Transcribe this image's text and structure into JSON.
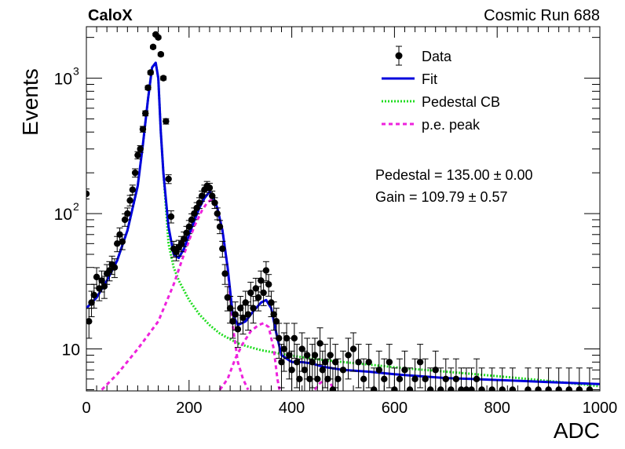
{
  "header": {
    "left": "CaloX",
    "right": "Cosmic Run 688"
  },
  "stats": {
    "pedestal": "Pedestal = 135.00 ± 0.00",
    "gain": "Gain = 109.79 ± 0.57"
  },
  "chart_data": {
    "type": "scatter",
    "xlabel": "ADC",
    "ylabel": "Events",
    "xlim": [
      0,
      1000
    ],
    "ylim": [
      4.9,
      2400
    ],
    "yscale": "log",
    "grid": false,
    "legend_position": "top-right",
    "x_ticks": [
      0,
      200,
      400,
      600,
      800,
      1000
    ],
    "y_tick_labels": [
      {
        "value": 10,
        "label": "10"
      },
      {
        "value": 100,
        "label": "10",
        "exp": "2"
      },
      {
        "value": 1000,
        "label": "10",
        "exp": "3"
      }
    ],
    "legend": [
      {
        "label": "Data",
        "style": "marker",
        "color": "#000000"
      },
      {
        "label": "Fit",
        "style": "solid",
        "color": "#0000dd"
      },
      {
        "label": "Pedestal CB",
        "style": "dotted",
        "color": "#22dd22"
      },
      {
        "label": "p.e. peak",
        "style": "dashed",
        "color": "#ee22dd"
      }
    ],
    "series": [
      {
        "name": "Data",
        "points": [
          [
            0,
            140
          ],
          [
            5,
            16
          ],
          [
            10,
            22
          ],
          [
            15,
            25
          ],
          [
            20,
            34
          ],
          [
            25,
            28
          ],
          [
            30,
            32
          ],
          [
            35,
            29
          ],
          [
            40,
            36
          ],
          [
            45,
            38
          ],
          [
            50,
            42
          ],
          [
            55,
            40
          ],
          [
            60,
            60
          ],
          [
            65,
            70
          ],
          [
            70,
            62
          ],
          [
            75,
            90
          ],
          [
            80,
            100
          ],
          [
            85,
            125
          ],
          [
            90,
            150
          ],
          [
            95,
            200
          ],
          [
            100,
            270
          ],
          [
            105,
            300
          ],
          [
            110,
            420
          ],
          [
            115,
            550
          ],
          [
            120,
            850
          ],
          [
            125,
            1100
          ],
          [
            130,
            1700
          ],
          [
            135,
            2100
          ],
          [
            140,
            2000
          ],
          [
            145,
            1500
          ],
          [
            150,
            1000
          ],
          [
            155,
            480
          ],
          [
            160,
            180
          ],
          [
            165,
            95
          ],
          [
            170,
            55
          ],
          [
            175,
            52
          ],
          [
            180,
            56
          ],
          [
            185,
            60
          ],
          [
            190,
            65
          ],
          [
            195,
            72
          ],
          [
            200,
            80
          ],
          [
            205,
            90
          ],
          [
            210,
            100
          ],
          [
            215,
            110
          ],
          [
            220,
            120
          ],
          [
            225,
            135
          ],
          [
            230,
            150
          ],
          [
            235,
            160
          ],
          [
            240,
            155
          ],
          [
            245,
            135
          ],
          [
            250,
            120
          ],
          [
            255,
            100
          ],
          [
            260,
            80
          ],
          [
            265,
            55
          ],
          [
            270,
            36
          ],
          [
            275,
            24
          ],
          [
            280,
            20
          ],
          [
            285,
            16
          ],
          [
            290,
            18
          ],
          [
            295,
            14
          ],
          [
            300,
            20
          ],
          [
            305,
            17
          ],
          [
            310,
            22
          ],
          [
            315,
            18
          ],
          [
            320,
            26
          ],
          [
            325,
            20
          ],
          [
            330,
            28
          ],
          [
            335,
            24
          ],
          [
            340,
            32
          ],
          [
            345,
            26
          ],
          [
            350,
            38
          ],
          [
            355,
            30
          ],
          [
            360,
            22
          ],
          [
            365,
            18
          ],
          [
            370,
            16
          ],
          [
            375,
            12
          ],
          [
            380,
            8
          ],
          [
            385,
            10
          ],
          [
            390,
            12
          ],
          [
            395,
            9
          ],
          [
            400,
            7
          ],
          [
            405,
            12
          ],
          [
            410,
            8
          ],
          [
            415,
            6
          ],
          [
            420,
            10
          ],
          [
            425,
            7
          ],
          [
            430,
            9
          ],
          [
            435,
            6
          ],
          [
            440,
            8
          ],
          [
            445,
            9
          ],
          [
            450,
            6
          ],
          [
            455,
            11
          ],
          [
            460,
            7
          ],
          [
            465,
            8
          ],
          [
            470,
            6
          ],
          [
            475,
            9
          ],
          [
            480,
            5
          ],
          [
            485,
            8
          ],
          [
            490,
            6
          ],
          [
            500,
            7
          ],
          [
            510,
            9
          ],
          [
            520,
            10
          ],
          [
            530,
            8
          ],
          [
            540,
            6
          ],
          [
            550,
            8
          ],
          [
            560,
            5
          ],
          [
            570,
            7
          ],
          [
            580,
            6
          ],
          [
            590,
            8
          ],
          [
            600,
            5
          ],
          [
            610,
            6
          ],
          [
            620,
            7
          ],
          [
            630,
            5
          ],
          [
            640,
            6
          ],
          [
            650,
            8
          ],
          [
            660,
            6
          ],
          [
            670,
            5
          ],
          [
            680,
            7
          ],
          [
            690,
            5
          ],
          [
            700,
            6
          ],
          [
            710,
            5
          ],
          [
            720,
            6
          ],
          [
            730,
            5
          ],
          [
            740,
            5
          ],
          [
            750,
            5
          ],
          [
            760,
            6
          ],
          [
            770,
            5
          ],
          [
            790,
            5
          ],
          [
            810,
            5
          ],
          [
            830,
            5
          ],
          [
            860,
            5
          ],
          [
            880,
            5
          ],
          [
            900,
            5
          ],
          [
            920,
            5
          ],
          [
            940,
            5
          ],
          [
            960,
            5
          ],
          [
            980,
            5
          ]
        ]
      },
      {
        "name": "Fit",
        "points": [
          [
            0,
            20
          ],
          [
            20,
            24
          ],
          [
            40,
            32
          ],
          [
            60,
            45
          ],
          [
            80,
            75
          ],
          [
            100,
            160
          ],
          [
            110,
            320
          ],
          [
            120,
            700
          ],
          [
            128,
            1200
          ],
          [
            135,
            1300
          ],
          [
            140,
            1000
          ],
          [
            145,
            400
          ],
          [
            150,
            200
          ],
          [
            160,
            80
          ],
          [
            170,
            50
          ],
          [
            180,
            47
          ],
          [
            190,
            55
          ],
          [
            200,
            70
          ],
          [
            210,
            88
          ],
          [
            220,
            110
          ],
          [
            230,
            130
          ],
          [
            240,
            145
          ],
          [
            245,
            138
          ],
          [
            255,
            110
          ],
          [
            265,
            75
          ],
          [
            275,
            40
          ],
          [
            285,
            18
          ],
          [
            295,
            15
          ],
          [
            310,
            16
          ],
          [
            325,
            19
          ],
          [
            340,
            22
          ],
          [
            350,
            23
          ],
          [
            360,
            20
          ],
          [
            370,
            13
          ],
          [
            380,
            9
          ],
          [
            400,
            8
          ],
          [
            420,
            8
          ],
          [
            440,
            7.8
          ],
          [
            460,
            7.4
          ],
          [
            480,
            7.2
          ],
          [
            500,
            7
          ],
          [
            550,
            6.8
          ],
          [
            600,
            6.5
          ],
          [
            650,
            6.3
          ],
          [
            700,
            6.1
          ],
          [
            750,
            6
          ],
          [
            800,
            5.9
          ],
          [
            850,
            5.8
          ],
          [
            900,
            5.7
          ],
          [
            950,
            5.6
          ],
          [
            1000,
            5.5
          ]
        ]
      },
      {
        "name": "Pedestal CB",
        "points": [
          [
            0,
            20
          ],
          [
            20,
            24
          ],
          [
            40,
            32
          ],
          [
            60,
            45
          ],
          [
            80,
            75
          ],
          [
            100,
            160
          ],
          [
            110,
            320
          ],
          [
            120,
            700
          ],
          [
            128,
            1200
          ],
          [
            135,
            1300
          ],
          [
            140,
            1000
          ],
          [
            145,
            400
          ],
          [
            150,
            200
          ],
          [
            160,
            60
          ],
          [
            170,
            40
          ],
          [
            180,
            32
          ],
          [
            200,
            23
          ],
          [
            220,
            18
          ],
          [
            240,
            15
          ],
          [
            260,
            13
          ],
          [
            280,
            11.8
          ],
          [
            300,
            10.8
          ],
          [
            340,
            9.8
          ],
          [
            380,
            9.2
          ],
          [
            420,
            8.7
          ],
          [
            460,
            8.3
          ],
          [
            500,
            8
          ],
          [
            560,
            7.6
          ],
          [
            620,
            7.2
          ],
          [
            680,
            6.9
          ],
          [
            740,
            6.6
          ],
          [
            800,
            6.3
          ],
          [
            860,
            6
          ],
          [
            920,
            5.7
          ],
          [
            980,
            5.4
          ],
          [
            1000,
            5.3
          ]
        ]
      },
      {
        "name": "p.e. peak",
        "points": [
          [
            30,
            5
          ],
          [
            60,
            6.5
          ],
          [
            100,
            10
          ],
          [
            140,
            16
          ],
          [
            170,
            30
          ],
          [
            190,
            50
          ],
          [
            210,
            80
          ],
          [
            225,
            105
          ],
          [
            235,
            120
          ],
          [
            245,
            128
          ],
          [
            255,
            110
          ],
          [
            265,
            75
          ],
          [
            275,
            40
          ],
          [
            285,
            15
          ],
          [
            295,
            8
          ],
          [
            305,
            6
          ],
          [
            315,
            5
          ]
        ]
      },
      {
        "name": "p.e. peak 2",
        "points": [
          [
            260,
            5
          ],
          [
            275,
            6
          ],
          [
            290,
            8.5
          ],
          [
            305,
            11
          ],
          [
            320,
            13.5
          ],
          [
            335,
            15
          ],
          [
            345,
            15.5
          ],
          [
            355,
            14.5
          ],
          [
            365,
            10
          ],
          [
            372,
            6
          ],
          [
            376,
            5
          ]
        ]
      },
      {
        "name": "p.e. peak 3",
        "points": [
          [
            445,
            5
          ],
          [
            455,
            5.6
          ],
          [
            465,
            5.9
          ],
          [
            475,
            5.6
          ],
          [
            482,
            5
          ]
        ]
      }
    ]
  }
}
